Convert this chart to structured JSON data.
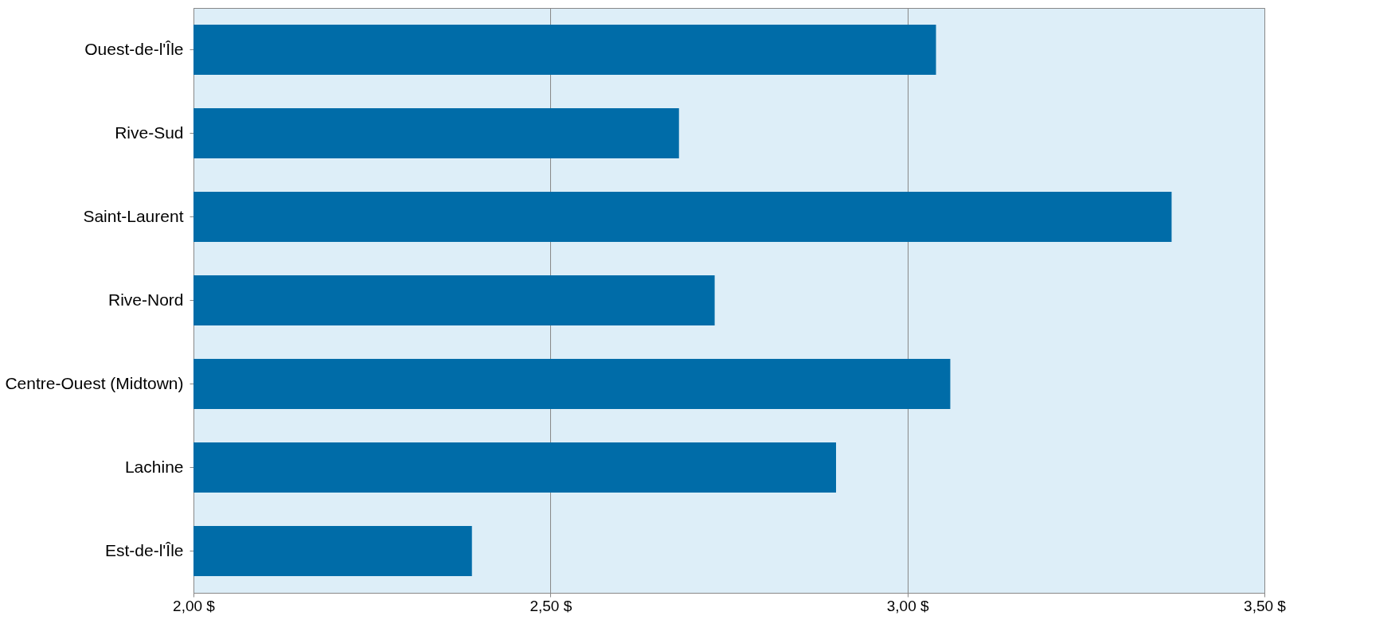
{
  "chart_data": {
    "type": "bar",
    "orientation": "horizontal",
    "categories": [
      "Ouest-de-l'Île",
      "Rive-Sud",
      "Saint-Laurent",
      "Rive-Nord",
      "Centre-Ouest (Midtown)",
      "Lachine",
      "Est-de-l'Île"
    ],
    "values": [
      3.04,
      2.68,
      3.37,
      2.73,
      3.06,
      2.9,
      2.39
    ],
    "color": "#006ca8",
    "xlim": [
      2,
      3.5
    ],
    "xticks": [
      {
        "value": 2,
        "label": "2,00 $"
      },
      {
        "value": 2.5,
        "label": "2,50 $"
      },
      {
        "value": 3,
        "label": "3,00 $"
      },
      {
        "value": 3.5,
        "label": "3,50 $"
      }
    ],
    "grid": "x"
  }
}
